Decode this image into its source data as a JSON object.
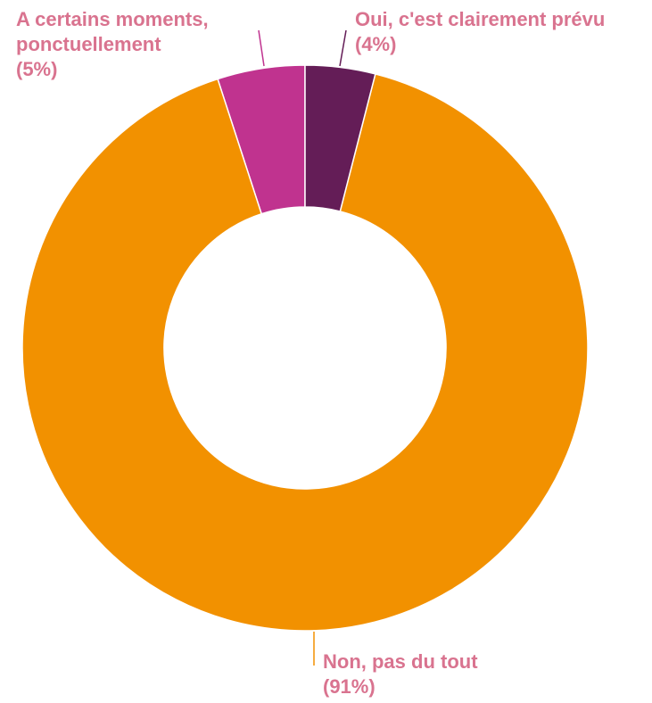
{
  "chart_data": {
    "type": "donut",
    "categories": [
      "Oui, c'est clairement prévu",
      "Non, pas du tout",
      "A certains moments, ponctuellement"
    ],
    "values": [
      4,
      91,
      5
    ],
    "value_labels": [
      "(4%)",
      "(91%)",
      "(5%)"
    ],
    "colors": [
      "#641d57",
      "#f29100",
      "#c0338f"
    ]
  }
}
